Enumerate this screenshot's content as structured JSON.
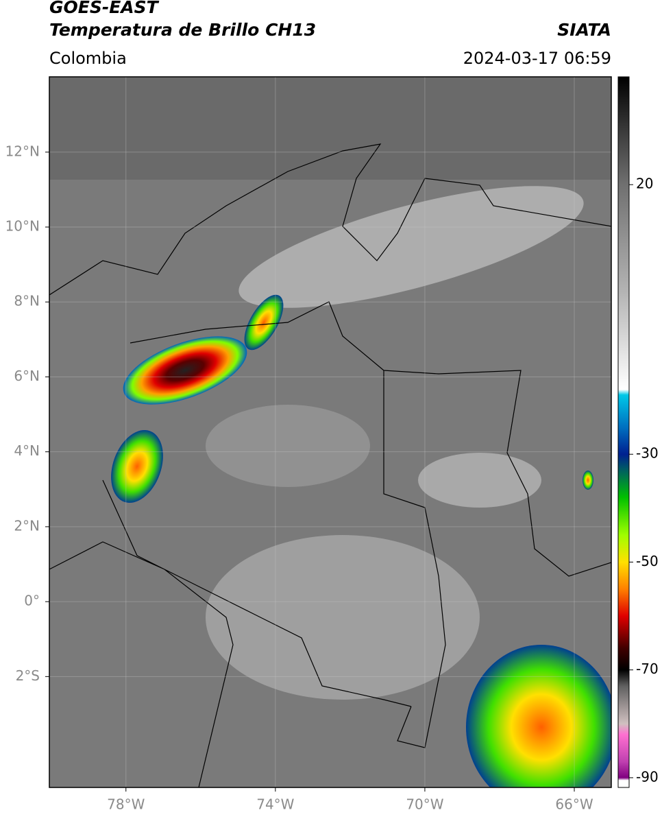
{
  "header": {
    "title": "GOES-EAST",
    "subtitle": "Temperatura de Brillo CH13",
    "source": "SIATA",
    "region": "Colombia",
    "datetime": "2024-03-17 06:59"
  },
  "map": {
    "xlim": [
      -80.05,
      -65.01
    ],
    "ylim": [
      -4.96,
      14.01
    ],
    "xticks": [
      {
        "value": -78,
        "label": "78°W"
      },
      {
        "value": -74,
        "label": "74°W"
      },
      {
        "value": -70,
        "label": "70°W"
      },
      {
        "value": -66,
        "label": "66°W"
      }
    ],
    "yticks": [
      {
        "value": 12,
        "label": "12°N"
      },
      {
        "value": 10,
        "label": "10°N"
      },
      {
        "value": 8,
        "label": "8°N"
      },
      {
        "value": 6,
        "label": "6°N"
      },
      {
        "value": 4,
        "label": "4°N"
      },
      {
        "value": 2,
        "label": "2°N"
      },
      {
        "value": 0,
        "label": "0°"
      },
      {
        "value": -2,
        "label": "2°S"
      }
    ],
    "grid": true
  },
  "colorbar": {
    "lim": [
      -91.8,
      40
    ],
    "ticks": [
      20,
      -30,
      -50,
      -70,
      -90
    ],
    "colormap": [
      [
        40,
        "#000000"
      ],
      [
        30,
        "#3a3a3a"
      ],
      [
        20,
        "#707070"
      ],
      [
        0,
        "#b4b4b4"
      ],
      [
        -18,
        "#ffffff"
      ],
      [
        -19,
        "#00c8e8"
      ],
      [
        -25,
        "#0070c0"
      ],
      [
        -30,
        "#002090"
      ],
      [
        -33,
        "#006060"
      ],
      [
        -38,
        "#00c000"
      ],
      [
        -45,
        "#a0ff00"
      ],
      [
        -50,
        "#ffe000"
      ],
      [
        -55,
        "#ff8000"
      ],
      [
        -60,
        "#e00000"
      ],
      [
        -66,
        "#400000"
      ],
      [
        -70,
        "#000000"
      ],
      [
        -73,
        "#606060"
      ],
      [
        -80,
        "#d0c0c0"
      ],
      [
        -82,
        "#ff70d0"
      ],
      [
        -87,
        "#c040b0"
      ],
      [
        -90,
        "#800080"
      ],
      [
        -90.5,
        "#ffffff"
      ],
      [
        -91.8,
        "#ffffff"
      ]
    ]
  }
}
